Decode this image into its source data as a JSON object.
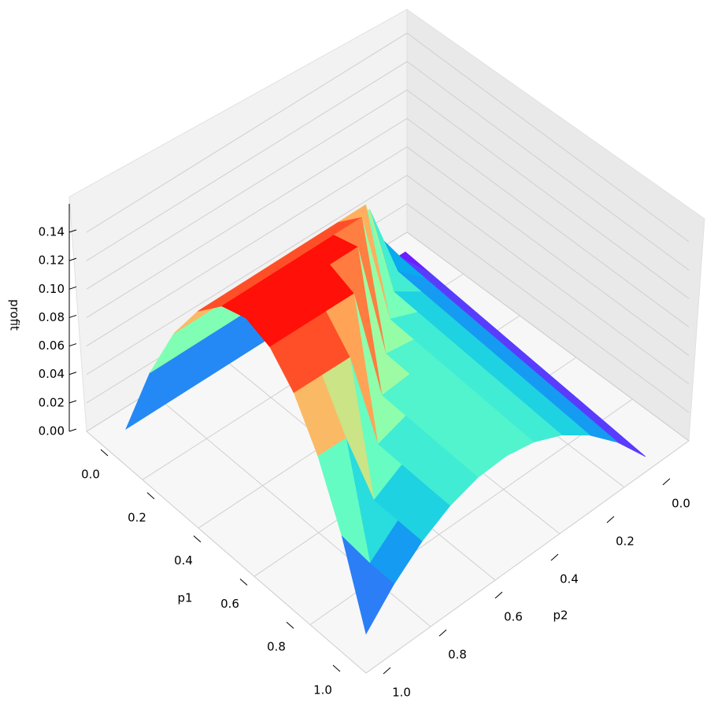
{
  "chart_data": {
    "type": "surface",
    "xlabel": "p1",
    "ylabel": "p2",
    "zlabel": "profit",
    "colormap": "rainbow",
    "x": [
      0,
      0.1,
      0.2,
      0.3,
      0.4,
      0.5,
      0.6,
      0.7,
      0.8,
      0.9,
      1
    ],
    "y": [
      0,
      0.1,
      0.2,
      0.3,
      0.4,
      0.5,
      0.6,
      0.7,
      0.8,
      0.9,
      1
    ],
    "z": [
      [
        0,
        0,
        0,
        0,
        0,
        0,
        0,
        0,
        0,
        0,
        0
      ],
      [
        0,
        0.0225,
        0.054,
        0.054,
        0.054,
        0.054,
        0.054,
        0.054,
        0.054,
        0.054,
        0.054
      ],
      [
        0,
        0.0225,
        0.04,
        0.096,
        0.096,
        0.096,
        0.096,
        0.096,
        0.096,
        0.096,
        0.096
      ],
      [
        0,
        0.0225,
        0.04,
        0.0525,
        0.126,
        0.126,
        0.126,
        0.126,
        0.126,
        0.126,
        0.126
      ],
      [
        0,
        0.0225,
        0.04,
        0.0525,
        0.06,
        0.144,
        0.144,
        0.144,
        0.144,
        0.144,
        0.144
      ],
      [
        0,
        0.0225,
        0.04,
        0.0525,
        0.06,
        0.0625,
        0.15,
        0.15,
        0.15,
        0.15,
        0.15
      ],
      [
        0,
        0.0225,
        0.04,
        0.0525,
        0.06,
        0.0625,
        0.06,
        0.144,
        0.144,
        0.144,
        0.144
      ],
      [
        0,
        0.0225,
        0.04,
        0.0525,
        0.06,
        0.0625,
        0.06,
        0.0525,
        0.126,
        0.126,
        0.126
      ],
      [
        0,
        0.0225,
        0.04,
        0.0525,
        0.06,
        0.0625,
        0.06,
        0.0525,
        0.04,
        0.096,
        0.096
      ],
      [
        0,
        0.0225,
        0.04,
        0.0525,
        0.06,
        0.0625,
        0.06,
        0.0525,
        0.04,
        0.0225,
        0.054
      ],
      [
        0,
        0.0225,
        0.04,
        0.0525,
        0.06,
        0.0625,
        0.06,
        0.0525,
        0.04,
        0.0225,
        0
      ]
    ],
    "xlim": [
      0,
      1
    ],
    "ylim": [
      0,
      1
    ],
    "zlim": [
      0,
      0.16
    ],
    "xticks": [
      {
        "value": 0,
        "label": "0.0"
      },
      0.2,
      0.4,
      0.6,
      0.8,
      {
        "value": 1,
        "label": "1.0"
      }
    ],
    "yticks": [
      {
        "value": 0,
        "label": "0.0"
      },
      0.2,
      0.4,
      0.6,
      0.8,
      {
        "value": 1,
        "label": "1.0"
      }
    ],
    "zticks": [
      {
        "value": 0,
        "label": "0.00"
      },
      {
        "value": 0.02,
        "label": "0.02"
      },
      {
        "value": 0.04,
        "label": "0.04"
      },
      {
        "value": 0.06,
        "label": "0.06"
      },
      {
        "value": 0.08,
        "label": "0.08"
      },
      {
        "value": 0.1,
        "label": "0.10"
      },
      {
        "value": 0.12,
        "label": "0.12"
      },
      {
        "value": 0.14,
        "label": "0.14"
      }
    ],
    "grid": true
  }
}
